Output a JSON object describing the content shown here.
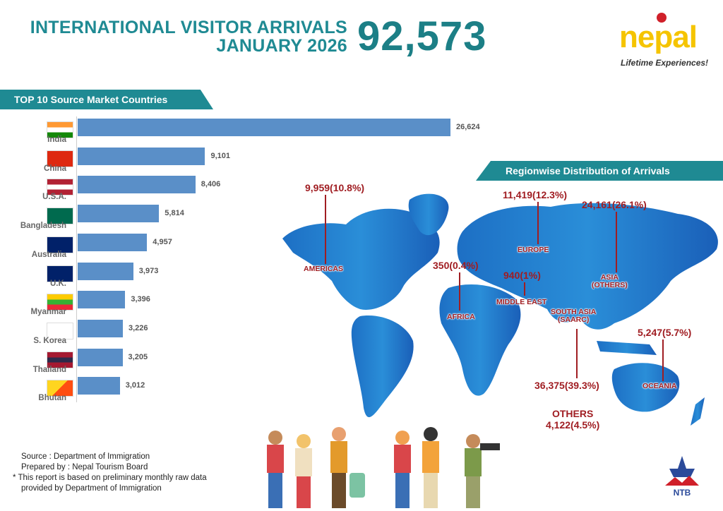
{
  "header": {
    "title_line1": "INTERNATIONAL VISITOR ARRIVALS",
    "title_line2": "JANUARY 2026",
    "total_arrivals": "92,573"
  },
  "logo": {
    "word": "nepal",
    "tagline": "Lifetime Experiences!"
  },
  "colors": {
    "teal": "#1f8a93",
    "bar": "#5a8fc8",
    "map": "#1f7fd0",
    "label": "#a01d22"
  },
  "chart_data": {
    "type": "bar",
    "orientation": "horizontal",
    "title": "TOP 10 Source Market Countries",
    "categories": [
      "India",
      "China",
      "U.S.A.",
      "Bangladesh",
      "Australia",
      "U.K.",
      "Myanmar",
      "S. Korea",
      "Thailand",
      "Bhutan"
    ],
    "values": [
      26624,
      9101,
      8406,
      5814,
      4957,
      3973,
      3396,
      3226,
      3205,
      3012
    ],
    "value_labels": [
      "26,624",
      "9,101",
      "8,406",
      "5,814",
      "4,957",
      "3,973",
      "3,396",
      "3,226",
      "3,205",
      "3,012"
    ],
    "grid": false
  },
  "region_map": {
    "title": "Regionwise Distribution of Arrivals",
    "regions": [
      {
        "name": "AMERICAS",
        "label": "9,959(10.8%)",
        "value": 9959,
        "percent": 10.8
      },
      {
        "name": "EUROPE",
        "label": "11,419(12.3%)",
        "value": 11419,
        "percent": 12.3
      },
      {
        "name": "ASIA (OTHERS)",
        "label": "24,161(26.1%)",
        "value": 24161,
        "percent": 26.1
      },
      {
        "name": "AFRICA",
        "label": "350(0.4%)",
        "value": 350,
        "percent": 0.4
      },
      {
        "name": "MIDDLE EAST",
        "label": "940(1%)",
        "value": 940,
        "percent": 1
      },
      {
        "name": "SOUTH ASIA (SAARC)",
        "label": "36,375(39.3%)",
        "value": 36375,
        "percent": 39.3
      },
      {
        "name": "OCEANIA",
        "label": "5,247(5.7%)",
        "value": 5247,
        "percent": 5.7
      },
      {
        "name": "OTHERS",
        "label": "4,122(4.5%)",
        "value": 4122,
        "percent": 4.5
      }
    ]
  },
  "footer": {
    "source": "Source : Department of Immigration",
    "prepared": "Prepared by : Nepal Tourism Board",
    "note1": "* This report is based on preliminary monthly raw data",
    "note2": "provided by Department of Immigration",
    "ntb": "NTB"
  }
}
